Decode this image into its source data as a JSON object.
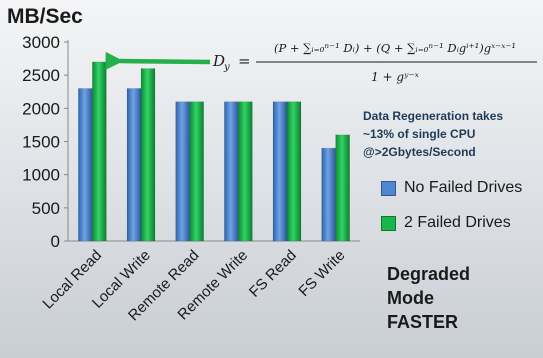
{
  "units_label": "MB/Sec",
  "note_lines": [
    "Data Regeneration takes",
    "~13% of single CPU",
    "@>2Gbytes/Second"
  ],
  "callout_lines": [
    "Degraded",
    "Mode",
    "FASTER"
  ],
  "formula": {
    "lhs": "D",
    "lhs_sub": "y",
    "equals": "=",
    "numerator": "(P + ∑ᵢ₌₀ⁿ⁻¹ Dᵢ) + (Q + ∑ᵢ₌₀ⁿ⁻¹ Dᵢgⁱ⁺¹)gˣ⁻ˣ⁻¹",
    "denominator": "1 + gʸ⁻ˣ"
  },
  "colors": {
    "series_blue": "#4f86d0",
    "series_green": "#17b84a",
    "arrow_green": "#25b04c",
    "axis": "#888888"
  },
  "chart_data": {
    "type": "bar",
    "categories": [
      "Local Read",
      "Local Write",
      "Remote Read",
      "Remote Write",
      "FS Read",
      "FS Write"
    ],
    "series": [
      {
        "name": "No Failed Drives",
        "values": [
          2300,
          2300,
          2100,
          2100,
          2100,
          1400
        ]
      },
      {
        "name": "2 Failed Drives",
        "values": [
          2700,
          2600,
          2100,
          2100,
          2100,
          1600
        ]
      }
    ],
    "yticks": [
      0,
      500,
      1000,
      1500,
      2000,
      2500,
      3000
    ],
    "ylim": [
      0,
      3000
    ],
    "ylabel": "MB/Sec",
    "xlabel": "",
    "title": "",
    "grid": false,
    "legend": "right"
  }
}
